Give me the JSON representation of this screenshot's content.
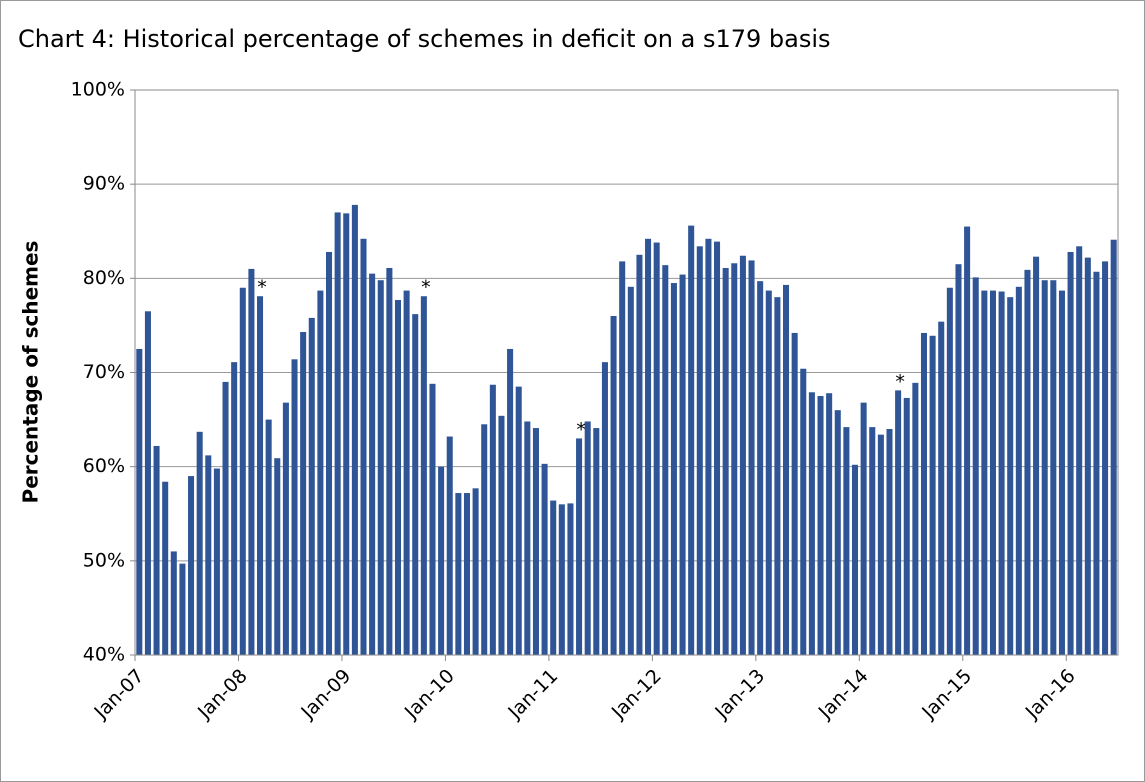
{
  "chart_data": {
    "type": "bar",
    "title": "Chart 4: Historical percentage of schemes in deficit on a s179 basis",
    "y_label": "Percentage of schemes",
    "color": "#2f5597",
    "grid": true,
    "ylim": [
      40,
      100
    ],
    "yticks": [
      {
        "value": 40,
        "label": "40%"
      },
      {
        "value": 50,
        "label": "50%"
      },
      {
        "value": 60,
        "label": "60%"
      },
      {
        "value": 70,
        "label": "70%"
      },
      {
        "value": 80,
        "label": "80%"
      },
      {
        "value": 90,
        "label": "90%"
      },
      {
        "value": 100,
        "label": "100%"
      }
    ],
    "categories": [
      "Jan-07",
      null,
      null,
      null,
      null,
      null,
      null,
      null,
      null,
      null,
      null,
      null,
      "Jan-08",
      null,
      null,
      null,
      null,
      null,
      null,
      null,
      null,
      null,
      null,
      null,
      "Jan-09",
      null,
      null,
      null,
      null,
      null,
      null,
      null,
      null,
      null,
      null,
      null,
      "Jan-10",
      null,
      null,
      null,
      null,
      null,
      null,
      null,
      null,
      null,
      null,
      null,
      "Jan-11",
      null,
      null,
      null,
      null,
      null,
      null,
      null,
      null,
      null,
      null,
      null,
      "Jan-12",
      null,
      null,
      null,
      null,
      null,
      null,
      null,
      null,
      null,
      null,
      null,
      "Jan-13",
      null,
      null,
      null,
      null,
      null,
      null,
      null,
      null,
      null,
      null,
      null,
      "Jan-14",
      null,
      null,
      null,
      null,
      null,
      null,
      null,
      null,
      null,
      null,
      null,
      "Jan-15",
      null,
      null,
      null,
      null,
      null,
      null,
      null,
      null,
      null,
      null,
      null,
      "Jan-16",
      null,
      null,
      null,
      null,
      null
    ],
    "values": [
      72.5,
      76.5,
      62.2,
      58.4,
      51.0,
      49.7,
      59.0,
      63.7,
      61.2,
      59.8,
      69.0,
      71.1,
      79.0,
      81.0,
      78.1,
      65.0,
      60.9,
      66.8,
      71.4,
      74.3,
      75.8,
      78.7,
      82.8,
      87.0,
      86.9,
      87.8,
      84.2,
      80.5,
      79.8,
      81.1,
      77.7,
      78.7,
      76.2,
      78.1,
      68.8,
      60.0,
      63.2,
      57.2,
      57.2,
      57.7,
      64.5,
      68.7,
      65.4,
      72.5,
      68.5,
      64.8,
      64.1,
      60.3,
      56.4,
      56.0,
      56.1,
      63.0,
      64.8,
      64.1,
      71.1,
      76.0,
      81.8,
      79.1,
      82.5,
      84.2,
      83.8,
      81.4,
      79.5,
      80.4,
      85.6,
      83.4,
      84.2,
      83.9,
      81.1,
      81.6,
      82.4,
      81.9,
      79.7,
      78.7,
      78.0,
      79.3,
      74.2,
      70.4,
      67.9,
      67.5,
      67.8,
      66.0,
      64.2,
      60.2,
      66.8,
      64.2,
      63.4,
      64.0,
      68.1,
      67.3,
      68.9,
      74.2,
      73.9,
      75.4,
      79.0,
      81.5,
      85.5,
      80.1,
      78.7,
      78.7,
      78.6,
      78.0,
      79.1,
      80.9,
      82.3,
      79.8,
      79.8,
      78.7,
      82.8,
      83.4,
      82.2,
      80.7,
      81.8,
      84.1
    ],
    "annotations": [
      {
        "text": "*",
        "point": 14
      },
      {
        "text": "*",
        "point": 33
      },
      {
        "text": "*",
        "point": 51
      },
      {
        "text": "*",
        "point": 88
      }
    ]
  }
}
